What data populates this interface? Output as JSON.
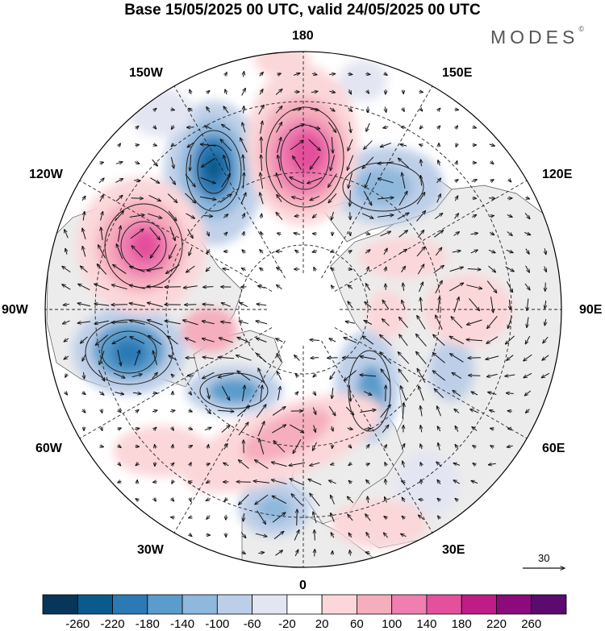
{
  "title": "Base 15/05/2025 00 UTC, valid 24/05/2025 00 UTC",
  "logo": {
    "text": "MODES",
    "mark": "©"
  },
  "longitude_labels": {
    "n180": "180",
    "w150": "150W",
    "e150": "150E",
    "w120": "120W",
    "e120": "120E",
    "w90": "90W",
    "e90": "90E",
    "w60": "60W",
    "e60": "60E",
    "w30": "30W",
    "e30": "30E",
    "s0": "0"
  },
  "reference_vector": {
    "label": "30"
  },
  "colorbar": {
    "colors": [
      "#08365a",
      "#0b5a8e",
      "#2b7ab6",
      "#5a9ccb",
      "#8eb8dc",
      "#bdcfe8",
      "#e3e5f2",
      "#ffffff",
      "#fbd7d9",
      "#f5aebc",
      "#ee7fb0",
      "#e4509c",
      "#c01b86",
      "#8c0a7c",
      "#5b0a6e"
    ],
    "labels": [
      "-260",
      "-220",
      "-180",
      "-140",
      "-100",
      "-60",
      "-20",
      "20",
      "60",
      "100",
      "140",
      "180",
      "220",
      "260"
    ]
  },
  "map_colors": {
    "land": "#ececec",
    "ocean": "#ffffff",
    "coast": "#555555",
    "grid": "#222222",
    "vector": "#111111"
  }
}
